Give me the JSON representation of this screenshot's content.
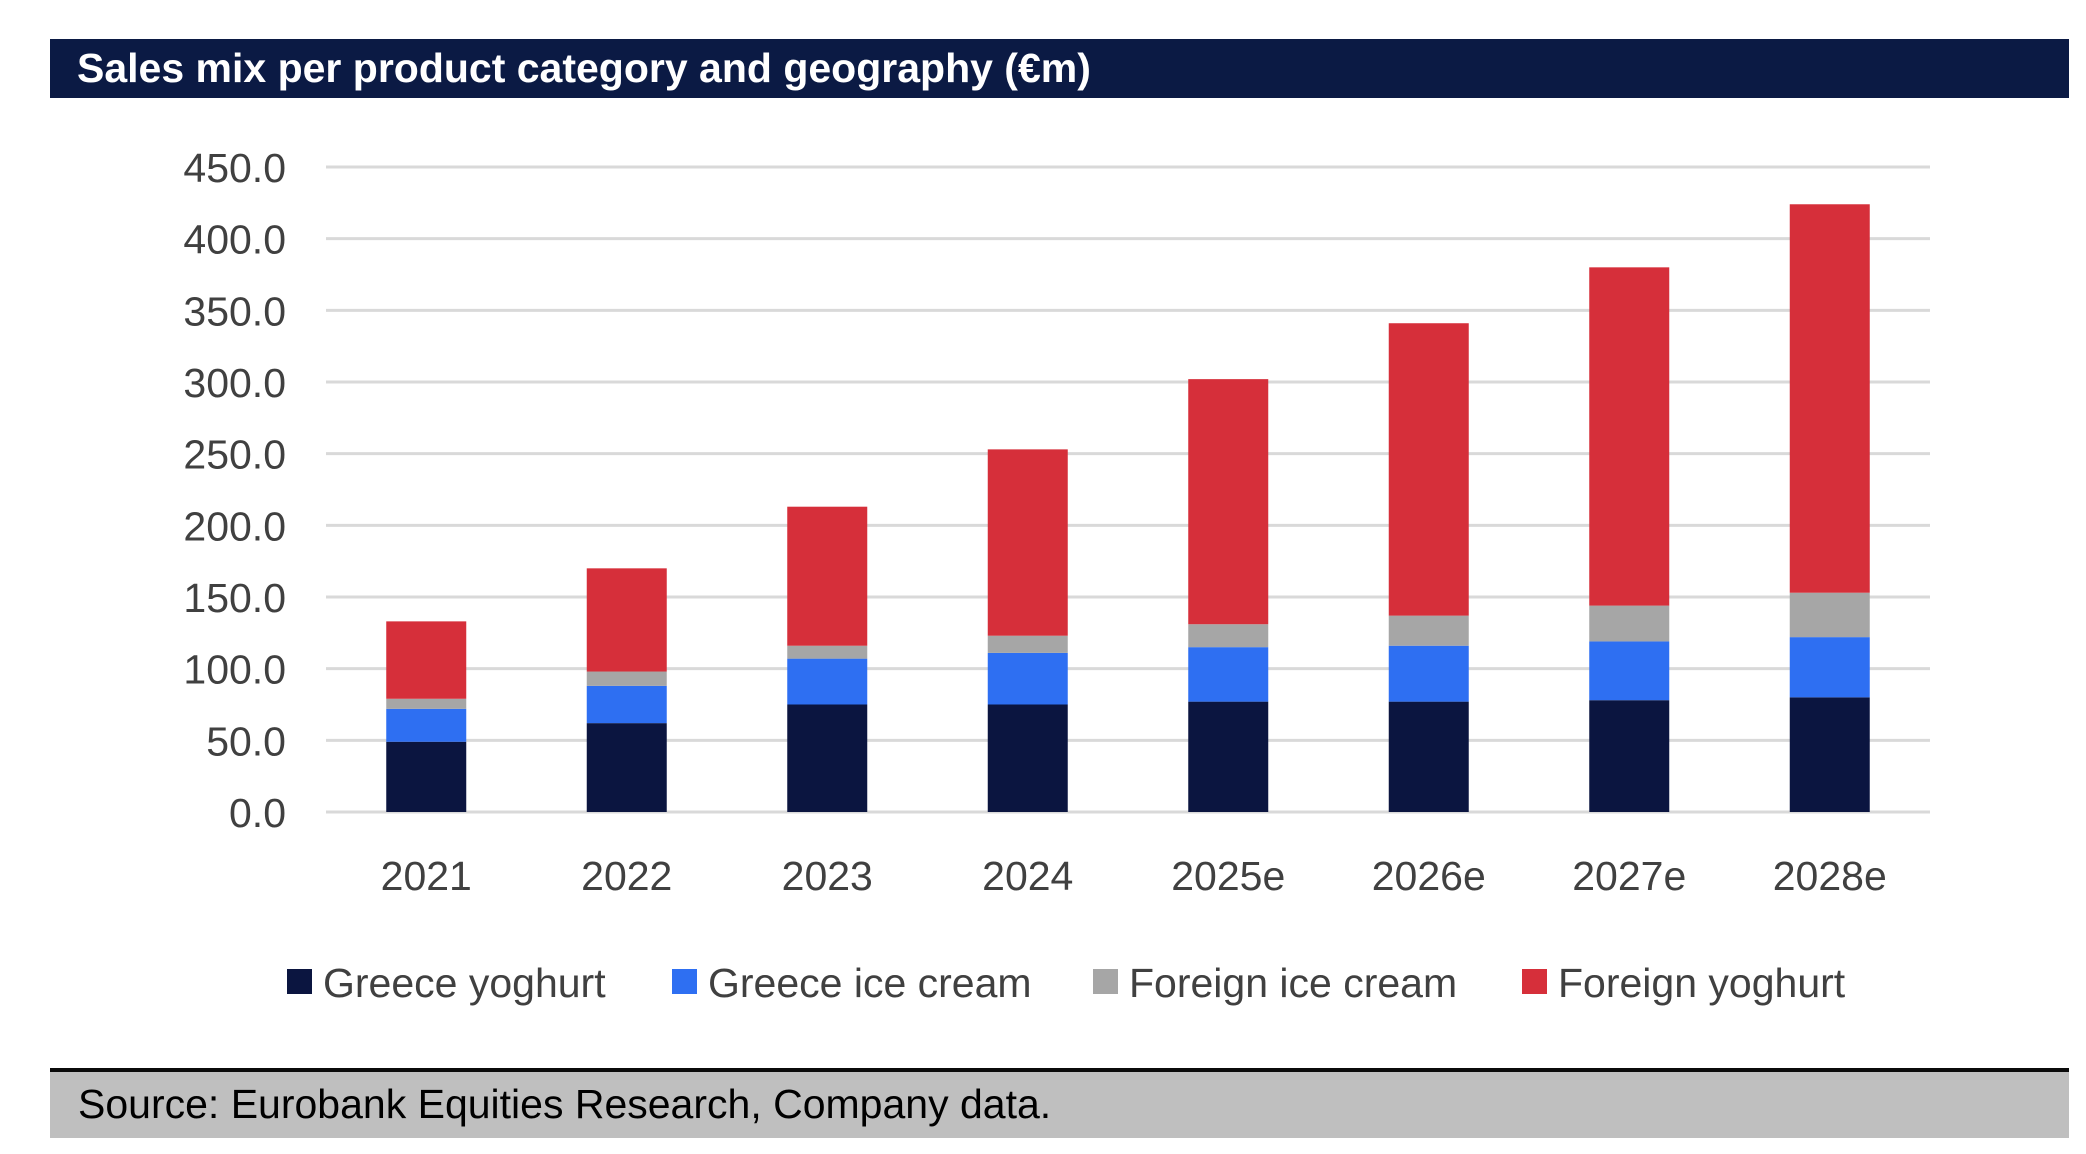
{
  "header": {
    "title": "Sales mix per product category and geography (€m)"
  },
  "footer": {
    "source": "Source: Eurobank Equities Research, Company data."
  },
  "colors": {
    "header_bg": "#0b1a44",
    "gridline": "#d9d9d9",
    "axis_text": "#404040",
    "footer_bg": "#bfbfbf"
  },
  "chart_data": {
    "type": "bar",
    "stacked": true,
    "title": "Sales mix per product category and geography (€m)",
    "xlabel": "",
    "ylabel": "",
    "ylim": [
      0,
      450
    ],
    "yticks": [
      0,
      50,
      100,
      150,
      200,
      250,
      300,
      350,
      400,
      450
    ],
    "ytick_labels": [
      "0.0",
      "50.0",
      "100.0",
      "150.0",
      "200.0",
      "250.0",
      "300.0",
      "350.0",
      "400.0",
      "450.0"
    ],
    "grid": true,
    "legend_position": "bottom",
    "categories": [
      "2021",
      "2022",
      "2023",
      "2024",
      "2025e",
      "2026e",
      "2027e",
      "2028e"
    ],
    "series": [
      {
        "name": "Greece yoghurt",
        "color": "#0b1540",
        "values": [
          49,
          62,
          75,
          75,
          77,
          77,
          78,
          80
        ]
      },
      {
        "name": "Greece ice cream",
        "color": "#2e6ff2",
        "values": [
          23,
          26,
          32,
          36,
          38,
          39,
          41,
          42
        ]
      },
      {
        "name": "Foreign ice cream",
        "color": "#a6a6a6",
        "values": [
          7,
          10,
          9,
          12,
          16,
          21,
          25,
          31
        ]
      },
      {
        "name": "Foreign yoghurt",
        "color": "#d62f3a",
        "values": [
          54,
          72,
          97,
          130,
          171,
          204,
          236,
          271
        ]
      }
    ]
  }
}
